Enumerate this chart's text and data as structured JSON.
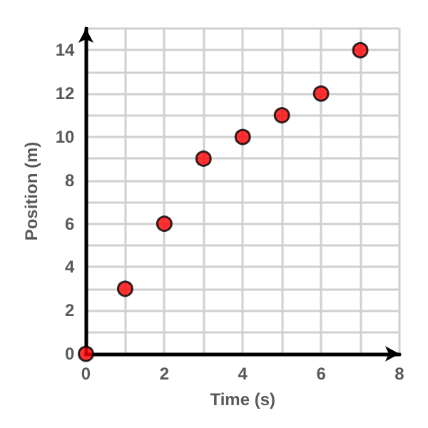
{
  "chart_data": {
    "type": "scatter",
    "xlabel": "Time (s)",
    "ylabel": "Position (m)",
    "x": [
      0,
      1,
      2,
      3,
      4,
      5,
      6,
      7
    ],
    "values": [
      0,
      3,
      6,
      9,
      10,
      11,
      12,
      14
    ],
    "color": "#ff0000",
    "marker": "circle",
    "grid": true,
    "xlim": [
      0,
      8
    ],
    "xticks": [
      0,
      {
        "value": 1,
        "label": null
      },
      2,
      {
        "value": 3,
        "label": null
      },
      4,
      {
        "value": 5,
        "label": null
      },
      6,
      {
        "value": 7,
        "label": null
      },
      8
    ],
    "ylim": [
      0,
      15
    ],
    "yticks": [
      0,
      {
        "value": 1,
        "label": null
      },
      2,
      {
        "value": 3,
        "label": null
      },
      4,
      {
        "value": 5,
        "label": null
      },
      6,
      {
        "value": 7,
        "label": null
      },
      8,
      {
        "value": 9,
        "label": null
      },
      10,
      {
        "value": 11,
        "label": null
      },
      12,
      {
        "value": 13,
        "label": null
      },
      14,
      {
        "value": 15,
        "label": null
      }
    ]
  }
}
